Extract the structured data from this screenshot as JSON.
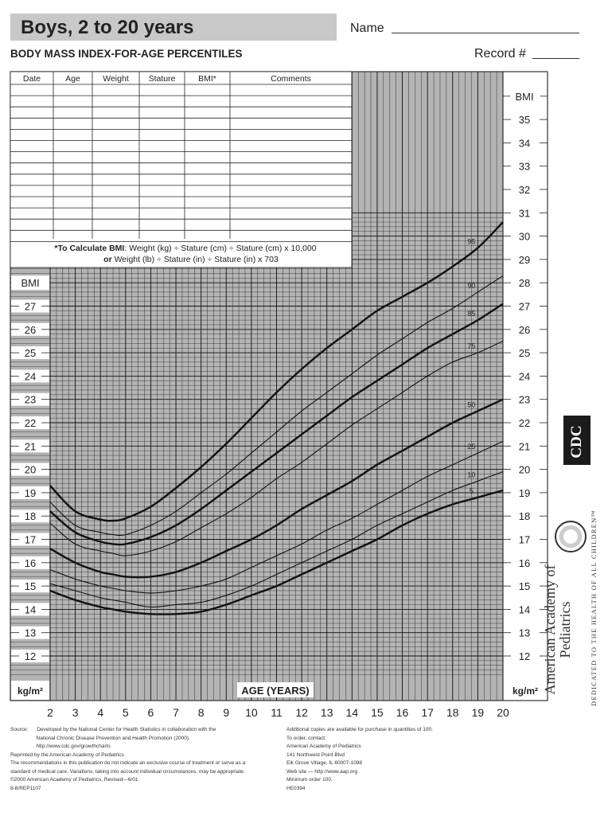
{
  "header": {
    "title": "Boys, 2 to 20 years",
    "subtitle": "BODY MASS INDEX-FOR-AGE PERCENTILES",
    "name_label": "Name",
    "record_label": "Record #"
  },
  "record_table": {
    "headers": [
      "Date",
      "Age",
      "Weight",
      "Stature",
      "BMI*",
      "Comments"
    ],
    "calc_note_line1_bold": "*To Calculate BMI",
    "calc_note_line1_rest": ": Weight (kg) ÷ Stature (cm) ÷ Stature (cm) x 10,000",
    "calc_note_line2_bold": "or",
    "calc_note_line2_rest": " Weight (lb) ÷ Stature (in) ÷ Stature (in) x 703"
  },
  "chart_data": {
    "type": "line",
    "title": "BODY MASS INDEX-FOR-AGE PERCENTILES",
    "xlabel": "AGE (YEARS)",
    "ylabel": "BMI",
    "unit_label": "kg/m²",
    "xlim": [
      2,
      20
    ],
    "ylim_left": [
      11,
      28
    ],
    "ylim_right": [
      11,
      36
    ],
    "x_ticks": [
      2,
      3,
      4,
      5,
      6,
      7,
      8,
      9,
      10,
      11,
      12,
      13,
      14,
      15,
      16,
      17,
      18,
      19,
      20
    ],
    "y_ticks_left": [
      12,
      13,
      14,
      15,
      16,
      17,
      18,
      19,
      20,
      21,
      22,
      23,
      24,
      25,
      26,
      27
    ],
    "y_ticks_right": [
      12,
      13,
      14,
      15,
      16,
      17,
      18,
      19,
      20,
      21,
      22,
      23,
      24,
      25,
      26,
      27,
      28,
      29,
      30,
      31,
      32,
      33,
      34,
      35
    ],
    "x": [
      2,
      3,
      4,
      4.5,
      5,
      6,
      7,
      8,
      9,
      10,
      11,
      12,
      13,
      14,
      15,
      16,
      17,
      18,
      19,
      20
    ],
    "series": [
      {
        "name": "95",
        "bold": true,
        "values": [
          19.3,
          18.2,
          17.85,
          17.8,
          17.9,
          18.4,
          19.2,
          20.1,
          21.1,
          22.2,
          23.3,
          24.3,
          25.2,
          26.0,
          26.8,
          27.4,
          28.0,
          28.7,
          29.5,
          30.6
        ]
      },
      {
        "name": "90",
        "bold": false,
        "values": [
          18.6,
          17.6,
          17.3,
          17.2,
          17.2,
          17.6,
          18.2,
          19.0,
          19.8,
          20.7,
          21.6,
          22.5,
          23.3,
          24.1,
          24.9,
          25.6,
          26.3,
          26.9,
          27.6,
          28.3
        ]
      },
      {
        "name": "85",
        "bold": true,
        "values": [
          18.2,
          17.3,
          16.9,
          16.8,
          16.8,
          17.1,
          17.6,
          18.3,
          19.1,
          19.9,
          20.7,
          21.5,
          22.3,
          23.1,
          23.8,
          24.5,
          25.2,
          25.8,
          26.4,
          27.1
        ]
      },
      {
        "name": "75",
        "bold": false,
        "values": [
          17.7,
          16.8,
          16.5,
          16.4,
          16.3,
          16.5,
          16.9,
          17.5,
          18.1,
          18.8,
          19.6,
          20.3,
          21.1,
          21.9,
          22.6,
          23.3,
          24.0,
          24.6,
          25.0,
          25.5
        ]
      },
      {
        "name": "50",
        "bold": true,
        "values": [
          16.6,
          16.0,
          15.6,
          15.5,
          15.4,
          15.4,
          15.6,
          16.0,
          16.5,
          17.0,
          17.6,
          18.3,
          18.9,
          19.5,
          20.2,
          20.8,
          21.4,
          22.0,
          22.5,
          23.0
        ]
      },
      {
        "name": "25",
        "bold": false,
        "values": [
          15.7,
          15.3,
          15.0,
          14.9,
          14.8,
          14.7,
          14.8,
          15.0,
          15.3,
          15.8,
          16.3,
          16.8,
          17.4,
          17.9,
          18.5,
          19.1,
          19.7,
          20.2,
          20.7,
          21.2
        ]
      },
      {
        "name": "10",
        "bold": false,
        "values": [
          15.1,
          14.8,
          14.5,
          14.4,
          14.3,
          14.1,
          14.2,
          14.3,
          14.6,
          15.0,
          15.5,
          16.0,
          16.5,
          17.0,
          17.6,
          18.1,
          18.6,
          19.1,
          19.5,
          19.9
        ]
      },
      {
        "name": "5",
        "bold": true,
        "values": [
          14.8,
          14.4,
          14.1,
          14.0,
          13.9,
          13.8,
          13.8,
          13.9,
          14.2,
          14.6,
          15.0,
          15.5,
          16.0,
          16.5,
          17.0,
          17.6,
          18.1,
          18.5,
          18.8,
          19.1
        ]
      }
    ]
  },
  "footer": {
    "left_lines": [
      "Source:      Developed by the National Center for Health Statistics in collaboration with the",
      "                  National Chronic Disease Prevention and Health Promotion (2000).",
      "                  http://www.cdc.gov/growthcharts",
      "Reprinted by the American Academy of Pediatrics",
      "The recommendations in this publication do not indicate an exclusive course of treatment or serve as a",
      "standard of medical care. Variations, taking into account individual circumstances, may be appropriate.",
      "©2000 American Academy of Pediatrics, Revised—6/01",
      "8-8/REP1107"
    ],
    "right_lines": [
      "Additional copies are available for purchase in quantities of 100.",
      "To order, contact:",
      "American Academy of Pediatrics",
      "141 Northwest Point Blvd",
      "Elk Grove Village, IL 60007-1098",
      "Web site — http://www.aap.org",
      "Minimum order 100.",
      "HE0394"
    ]
  },
  "logos": {
    "cdc": "CDC",
    "aap_name": "American Academy of Pediatrics",
    "aap_motto": "DEDICATED TO THE HEALTH OF ALL CHILDREN™"
  }
}
